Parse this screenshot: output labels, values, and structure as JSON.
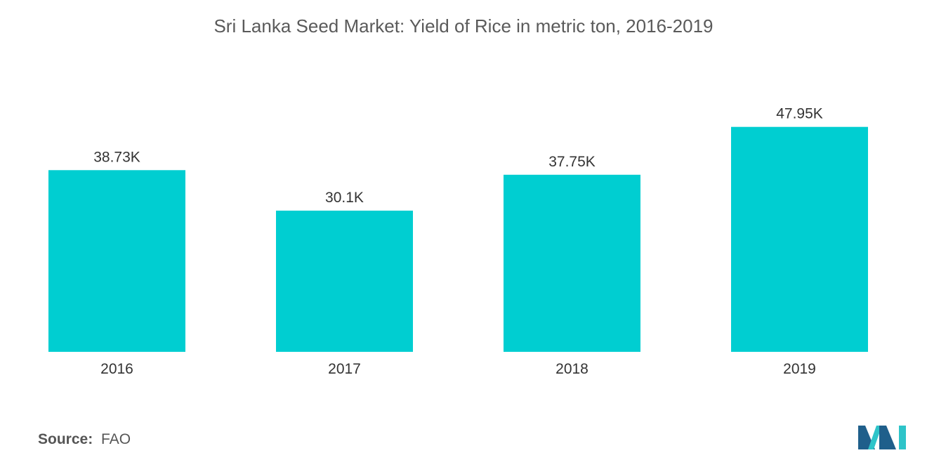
{
  "title": "Sri Lanka Seed Market: Yield of Rice in metric ton, 2016-2019",
  "source": {
    "label": "Source:",
    "value": "FAO"
  },
  "colors": {
    "bar": "#00ced1",
    "text": "#333333",
    "title": "#5a5a5a",
    "logo_dark": "#1f5f8b",
    "logo_light": "#2ec4c9"
  },
  "chart_data": {
    "type": "bar",
    "title": "Sri Lanka Seed Market: Yield of Rice in metric ton, 2016-2019",
    "xlabel": "",
    "ylabel": "",
    "categories": [
      "2016",
      "2017",
      "2018",
      "2019"
    ],
    "values": [
      38730,
      30100,
      37750,
      47950
    ],
    "value_labels": [
      "38.73K",
      "30.1K",
      "37.75K",
      "47.95K"
    ],
    "ylim": [
      0,
      50000
    ],
    "grid": false,
    "legend": "none"
  }
}
